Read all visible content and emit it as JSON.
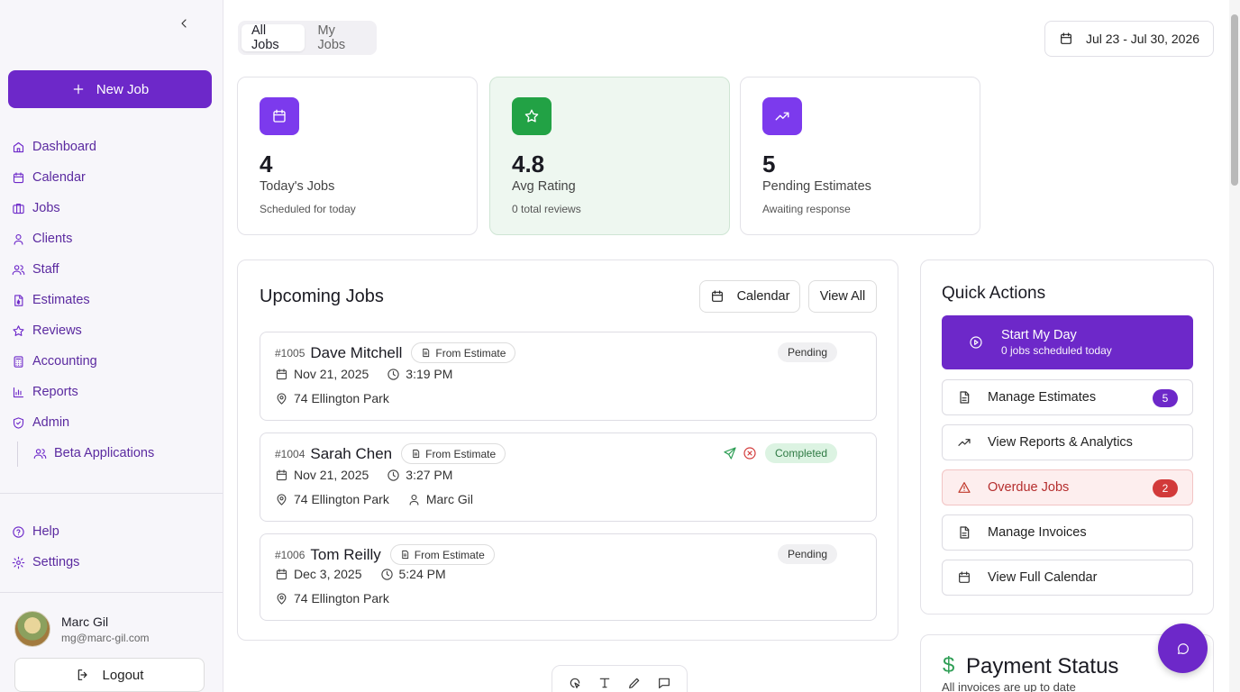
{
  "sidebar": {
    "new_job_label": "New Job",
    "items": [
      {
        "label": "Dashboard",
        "icon": "home-icon"
      },
      {
        "label": "Calendar",
        "icon": "calendar-icon"
      },
      {
        "label": "Jobs",
        "icon": "briefcase-icon"
      },
      {
        "label": "Clients",
        "icon": "user-icon"
      },
      {
        "label": "Staff",
        "icon": "users-icon"
      },
      {
        "label": "Estimates",
        "icon": "file-dollar-icon"
      },
      {
        "label": "Reviews",
        "icon": "star-icon"
      },
      {
        "label": "Accounting",
        "icon": "calculator-icon"
      },
      {
        "label": "Reports",
        "icon": "bar-chart-icon"
      },
      {
        "label": "Admin",
        "icon": "shield-check-icon"
      }
    ],
    "sub_item": {
      "label": "Beta Applications",
      "icon": "users-icon"
    },
    "bottom_items": [
      {
        "label": "Help",
        "icon": "help-circle-icon"
      },
      {
        "label": "Settings",
        "icon": "gear-icon"
      }
    ],
    "user": {
      "name": "Marc Gil",
      "email": "mg@marc-gil.com"
    },
    "logout_label": "Logout"
  },
  "header": {
    "tabs": [
      {
        "label": "All Jobs",
        "active": true
      },
      {
        "label": "My Jobs",
        "active": false
      }
    ],
    "date_range": "Jul 23 - Jul 30, 2026"
  },
  "stats": [
    {
      "value": "4",
      "label": "Today's Jobs",
      "sub": "Scheduled for today",
      "icon": "calendar-icon",
      "color": "#7c3aed"
    },
    {
      "value": "4.8",
      "label": "Avg Rating",
      "sub": "0 total reviews",
      "icon": "star-icon",
      "color": "#22a245"
    },
    {
      "value": "5",
      "label": "Pending Estimates",
      "sub": "Awaiting response",
      "icon": "trending-up-icon",
      "color": "#7c3aed"
    }
  ],
  "upcoming": {
    "title": "Upcoming Jobs",
    "calendar_label": "Calendar",
    "view_all_label": "View All",
    "jobs": [
      {
        "number": "#1005",
        "name": "Dave Mitchell",
        "tag": "From Estimate",
        "date": "Nov 21, 2025",
        "time": "3:19 PM",
        "address": "74 Ellington Park",
        "assignee": "",
        "status": "Pending"
      },
      {
        "number": "#1004",
        "name": "Sarah Chen",
        "tag": "From Estimate",
        "date": "Nov 21, 2025",
        "time": "3:27 PM",
        "address": "74 Ellington Park",
        "assignee": "Marc Gil",
        "status": "Completed"
      },
      {
        "number": "#1006",
        "name": "Tom Reilly",
        "tag": "From Estimate",
        "date": "Dec 3, 2025",
        "time": "5:24 PM",
        "address": "74 Ellington Park",
        "assignee": "",
        "status": "Pending"
      }
    ]
  },
  "quick_actions": {
    "title": "Quick Actions",
    "primary": {
      "label": "Start My Day",
      "sub": "0 jobs scheduled today"
    },
    "items": [
      {
        "label": "Manage Estimates",
        "badge": "5",
        "icon": "file-icon"
      },
      {
        "label": "View Reports & Analytics",
        "badge": "",
        "icon": "trending-up-icon"
      },
      {
        "label": "Overdue Jobs",
        "badge": "2",
        "icon": "alert-triangle-icon"
      },
      {
        "label": "Manage Invoices",
        "badge": "",
        "icon": "file-icon"
      },
      {
        "label": "View Full Calendar",
        "badge": "",
        "icon": "calendar-icon"
      }
    ]
  },
  "payment": {
    "symbol": "$",
    "title": "Payment Status",
    "sub": "All invoices are up to date"
  },
  "colors": {
    "brand": "#6d28c9",
    "green": "#22a245",
    "danger": "#d23a3a"
  }
}
